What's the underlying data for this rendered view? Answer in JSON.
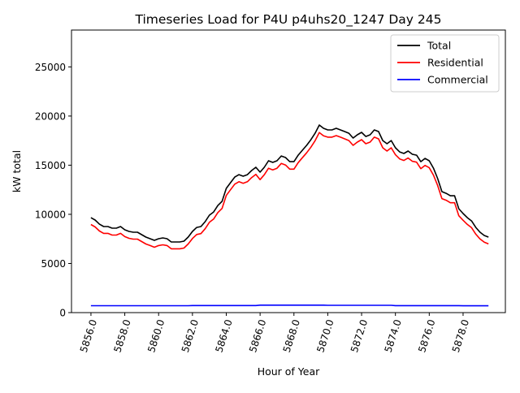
{
  "chart_data": {
    "type": "line",
    "title": "Timeseries Load for P4U p4uhs20_1247  Day 245",
    "xlabel": "Hour of Year",
    "ylabel": "kW total",
    "xlim": [
      5854.85,
      5880.5
    ],
    "ylim": [
      0,
      28750
    ],
    "x_start": 5856,
    "x_step": 0.25,
    "xticks": [
      5856,
      5858,
      5860,
      5862,
      5864,
      5866,
      5868,
      5870,
      5872,
      5874,
      5876,
      5878
    ],
    "xtick_labels": [
      "5856.0",
      "5858.0",
      "5860.0",
      "5862.0",
      "5864.0",
      "5866.0",
      "5868.0",
      "5870.0",
      "5872.0",
      "5874.0",
      "5876.0",
      "5878.0"
    ],
    "yticks": [
      0,
      5000,
      10000,
      15000,
      20000,
      25000
    ],
    "ytick_labels": [
      "0",
      "5000",
      "10000",
      "15000",
      "20000",
      "25000"
    ],
    "grid": false,
    "legend_position": "top-right",
    "series": [
      {
        "name": "Total",
        "color": "#000000",
        "values": [
          9660,
          9420,
          9000,
          8760,
          8760,
          8590,
          8590,
          8760,
          8430,
          8260,
          8180,
          8180,
          7930,
          7680,
          7520,
          7350,
          7520,
          7600,
          7520,
          7190,
          7190,
          7190,
          7270,
          7680,
          8260,
          8670,
          8760,
          9250,
          9910,
          10240,
          10900,
          11320,
          12640,
          13220,
          13790,
          14040,
          13880,
          14040,
          14460,
          14790,
          14290,
          14790,
          15450,
          15280,
          15450,
          15940,
          15780,
          15360,
          15360,
          16020,
          16520,
          17020,
          17590,
          18250,
          19080,
          18750,
          18590,
          18590,
          18750,
          18590,
          18420,
          18250,
          17760,
          18090,
          18340,
          17920,
          18090,
          18590,
          18420,
          17510,
          17180,
          17510,
          16770,
          16350,
          16190,
          16440,
          16110,
          16020,
          15360,
          15690,
          15450,
          14700,
          13630,
          12310,
          12140,
          11890,
          11890,
          10570,
          10080,
          9660,
          9330,
          8670,
          8180,
          7850,
          7680
        ]
      },
      {
        "name": "Residential",
        "color": "#ff0000",
        "values": [
          8960,
          8720,
          8300,
          8060,
          8060,
          7890,
          7890,
          8060,
          7730,
          7560,
          7480,
          7480,
          7230,
          6980,
          6820,
          6650,
          6820,
          6900,
          6820,
          6490,
          6490,
          6490,
          6570,
          6980,
          7540,
          7950,
          8040,
          8530,
          9190,
          9520,
          10180,
          10600,
          11920,
          12500,
          13070,
          13320,
          13160,
          13320,
          13740,
          14070,
          13530,
          14030,
          14690,
          14520,
          14690,
          15180,
          15020,
          14600,
          14600,
          15260,
          15760,
          16260,
          16830,
          17490,
          18320,
          17990,
          17850,
          17850,
          18010,
          17850,
          17680,
          17510,
          17020,
          17350,
          17600,
          17180,
          17350,
          17850,
          17680,
          16770,
          16440,
          16770,
          16060,
          15640,
          15480,
          15730,
          15400,
          15310,
          14650,
          14980,
          14740,
          13990,
          12920,
          11600,
          11430,
          11180,
          11180,
          9860,
          9390,
          8970,
          8640,
          7980,
          7490,
          7160,
          6990
        ]
      },
      {
        "name": "Commercial",
        "color": "#0000ff",
        "values": [
          700,
          700,
          700,
          700,
          700,
          700,
          700,
          700,
          700,
          700,
          700,
          700,
          700,
          700,
          700,
          700,
          700,
          700,
          700,
          700,
          700,
          700,
          700,
          700,
          720,
          720,
          720,
          720,
          720,
          720,
          720,
          720,
          720,
          720,
          720,
          720,
          720,
          720,
          720,
          720,
          760,
          760,
          760,
          760,
          760,
          760,
          760,
          760,
          760,
          760,
          760,
          760,
          760,
          760,
          760,
          760,
          740,
          740,
          740,
          740,
          740,
          740,
          740,
          740,
          740,
          740,
          740,
          740,
          740,
          740,
          740,
          740,
          710,
          710,
          710,
          710,
          710,
          710,
          710,
          710,
          710,
          710,
          710,
          710,
          710,
          710,
          710,
          710,
          690,
          690,
          690,
          690,
          690,
          690,
          690
        ]
      }
    ]
  }
}
